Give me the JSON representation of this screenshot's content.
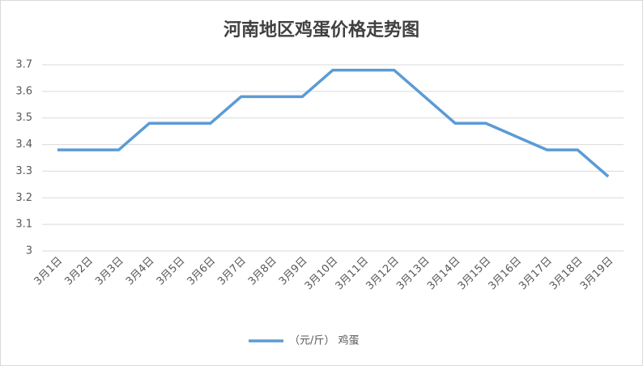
{
  "chart_data": {
    "type": "line",
    "title": "河南地区鸡蛋价格走势图",
    "categories": [
      "3月1日",
      "3月2日",
      "3月3日",
      "3月4日",
      "3月5日",
      "3月6日",
      "3月7日",
      "3月8日",
      "3月9日",
      "3月10日",
      "3月11日",
      "3月12日",
      "3月13日",
      "3月14日",
      "3月15日",
      "3月16日",
      "3月17日",
      "3月18日",
      "3月19日"
    ],
    "series": [
      {
        "name": "（元/斤） 鸡蛋",
        "color": "#5b9bd5",
        "values": [
          3.38,
          3.38,
          3.38,
          3.48,
          3.48,
          3.48,
          3.58,
          3.58,
          3.58,
          3.68,
          3.68,
          3.68,
          3.58,
          3.48,
          3.48,
          3.43,
          3.38,
          3.38,
          3.28
        ]
      }
    ],
    "ylim": [
      3,
      3.7
    ],
    "yticks": [
      3,
      3.1,
      3.2,
      3.3,
      3.4,
      3.5,
      3.6,
      3.7
    ],
    "grid": true,
    "legend": "bottom"
  }
}
